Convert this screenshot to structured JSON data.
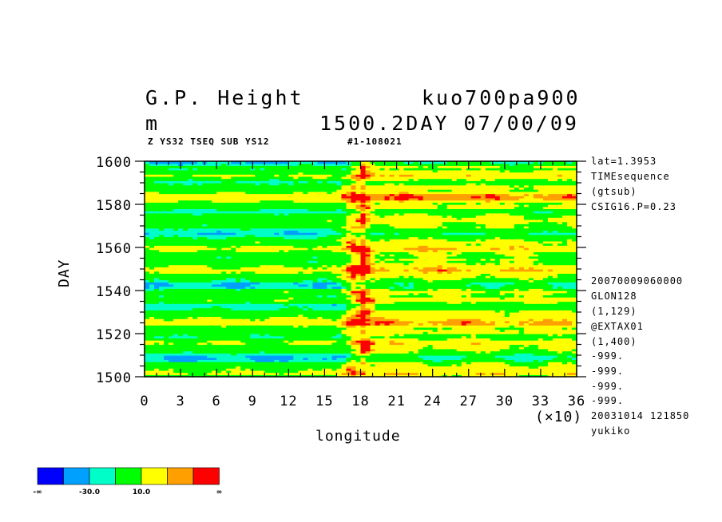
{
  "header": {
    "title_left": "G.P. Height",
    "title_right": "kuo700pa900",
    "unit": "m",
    "time_label": "1500.2DAY 07/00/09",
    "sub_left": "Z YS32 TSEQ SUB YS12",
    "sub_right": "#1-108021"
  },
  "side_info": [
    "lat=1.3953",
    "TIMEsequence",
    "(gtsub)",
    "CSIG16.P=0.23",
    "20070009060000",
    "GLON128",
    "(1,129)",
    "@EXTAX01",
    "(1,400)",
    "-999.",
    "-999.",
    "-999.",
    "-999.",
    "20031014 121850",
    "yukiko"
  ],
  "colors": {
    "levels": [
      "#0000ff",
      "#00a0ff",
      "#00ffc8",
      "#00ff00",
      "#ffff00",
      "#ffa000",
      "#ff0000"
    ],
    "background": "#ffffff"
  },
  "colorbar": {
    "labels": [
      "-∞",
      "-30.0",
      "10.0",
      "∞"
    ]
  },
  "chart_data": {
    "type": "heatmap",
    "title": "G.P. Height",
    "xlabel": "longitude",
    "xlabel_multiplier": "(×10)",
    "ylabel": "DAY",
    "x_ticks": [
      0,
      3,
      6,
      9,
      12,
      15,
      18,
      21,
      24,
      27,
      30,
      33,
      36
    ],
    "y_ticks": [
      1500,
      1520,
      1540,
      1560,
      1580,
      1600
    ],
    "xlim": [
      0,
      36
    ],
    "ylim": [
      1500,
      1600
    ],
    "x_minor_step": 1,
    "y_minor_step": 5,
    "grid": false,
    "legend": "colorbar bottom-left",
    "features": {
      "positive_ridge_longitude": 18,
      "warm_region_longitudes": [
        18,
        36
      ],
      "cool_region_longitudes": [
        0,
        17
      ]
    }
  }
}
